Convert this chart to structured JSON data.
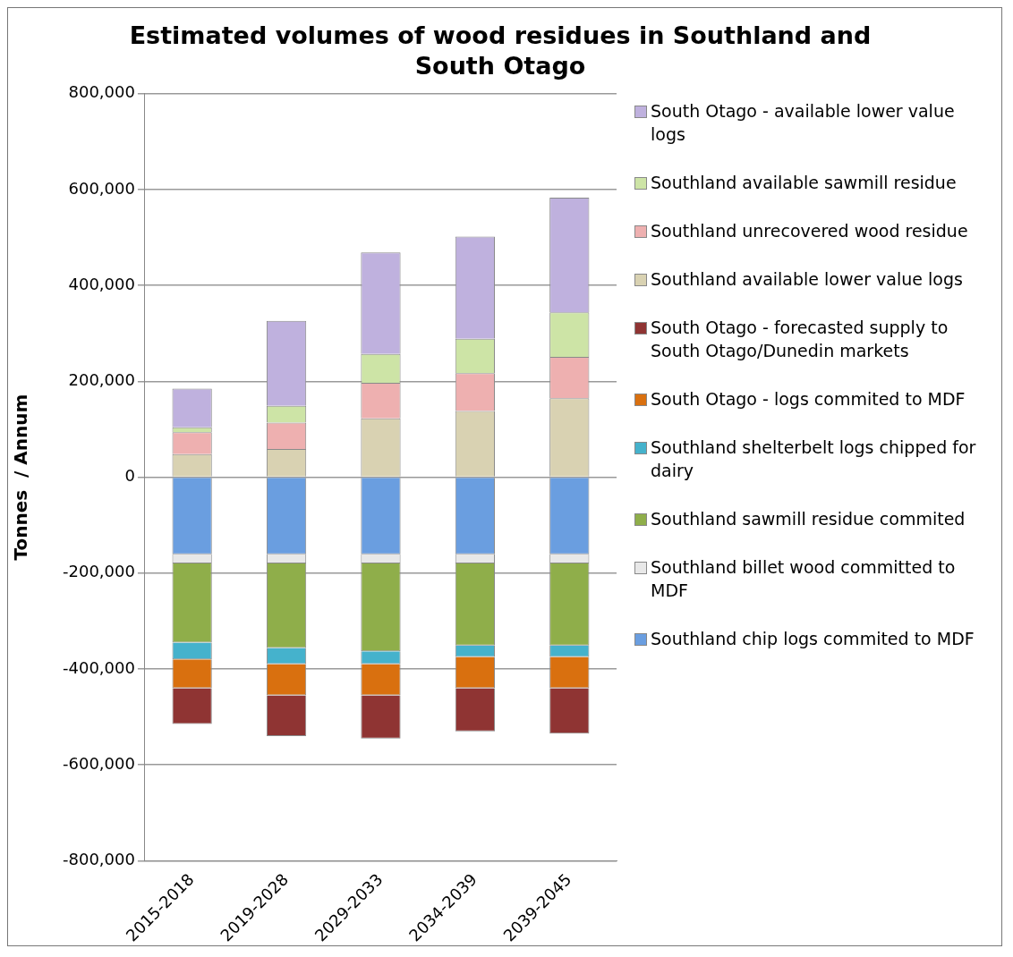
{
  "chart_data": {
    "type": "bar",
    "title": "Estimated volumes of wood residues in Southland and South  Otago",
    "ylabel": "Tonnes  / Annum",
    "categories": [
      "2015-2018",
      "2019-2028",
      "2029-2033",
      "2034-2039",
      "2039-2045"
    ],
    "stacked": true,
    "legend": "right",
    "grid": "y",
    "ylim": [
      -800000,
      800000
    ],
    "yticks": [
      {
        "value": -800000,
        "label": "-800,000"
      },
      {
        "value": -600000,
        "label": "-600,000"
      },
      {
        "value": -400000,
        "label": "-400,000"
      },
      {
        "value": -200000,
        "label": "-200,000"
      },
      {
        "value": 0,
        "label": "0"
      },
      {
        "value": 200000,
        "label": "200,000"
      },
      {
        "value": 400000,
        "label": "400,000"
      },
      {
        "value": 600000,
        "label": "600,000"
      },
      {
        "value": 800000,
        "label": "800,000"
      }
    ],
    "series": [
      {
        "name": "Southland chip logs commited to MDF",
        "color": "#6a9ee0",
        "values": [
          -161000,
          -161000,
          -161000,
          -161000,
          -161000
        ]
      },
      {
        "name": "Southland billet wood committed to MDF",
        "color": "#e8e8e8",
        "values": [
          -19000,
          -19000,
          -19000,
          -19000,
          -19000
        ]
      },
      {
        "name": "Southland sawmill residue commited",
        "color": "#8fae4a",
        "values": [
          -165000,
          -176000,
          -183000,
          -171000,
          -171000
        ]
      },
      {
        "name": "Southland shelterbelt logs chipped for dairy",
        "color": "#45b2cc",
        "values": [
          -35000,
          -34000,
          -27000,
          -24000,
          -24000
        ]
      },
      {
        "name": "South Otago - logs commited to MDF",
        "color": "#d9700f",
        "values": [
          -60000,
          -65000,
          -65000,
          -65000,
          -65000
        ]
      },
      {
        "name": "South Otago - forecasted supply to South Otago/Dunedin markets",
        "color": "#8f3433",
        "values": [
          -75000,
          -85000,
          -90000,
          -90000,
          -95000
        ]
      },
      {
        "name": "Southland available lower value logs",
        "color": "#d9d2b2",
        "values": [
          48000,
          59000,
          123000,
          138000,
          165000
        ]
      },
      {
        "name": "Southland unrecovered wood residue",
        "color": "#eeb0b0",
        "values": [
          46000,
          55000,
          74000,
          79000,
          86000
        ]
      },
      {
        "name": "Southland available sawmill residue",
        "color": "#cde4a6",
        "values": [
          10000,
          35000,
          60000,
          72000,
          93000
        ]
      },
      {
        "name": "South Otago - available lower value logs",
        "color": "#bfb1de",
        "values": [
          81000,
          177000,
          212000,
          213000,
          239000
        ]
      }
    ]
  }
}
